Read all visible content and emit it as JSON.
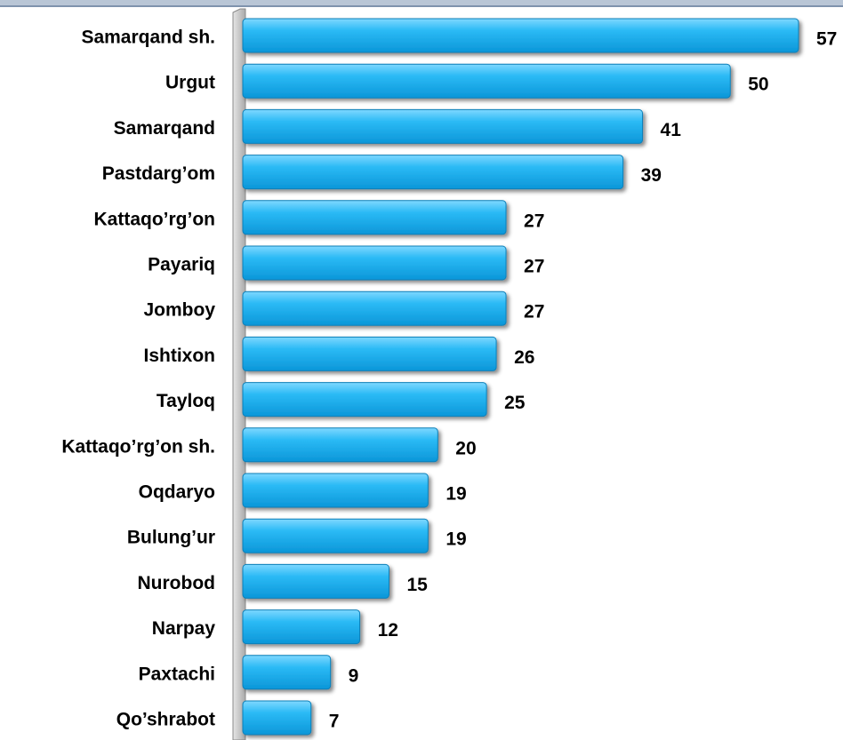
{
  "chart_data": {
    "type": "bar",
    "orientation": "horizontal",
    "categories": [
      "Samarqand sh.",
      "Urgut",
      "Samarqand",
      "Pastdarg’om",
      "Kattaqo’rg’on",
      "Payariq",
      "Jomboy",
      "Ishtixon",
      "Tayloq",
      "Kattaqo’rg’on sh.",
      "Oqdaryo",
      "Bulung’ur",
      "Nurobod",
      "Narpay",
      "Paxtachi",
      "Qo’shrabot"
    ],
    "values": [
      57,
      50,
      41,
      39,
      27,
      27,
      27,
      26,
      25,
      20,
      19,
      19,
      15,
      12,
      9,
      7
    ],
    "color": "#18aef0"
  }
}
